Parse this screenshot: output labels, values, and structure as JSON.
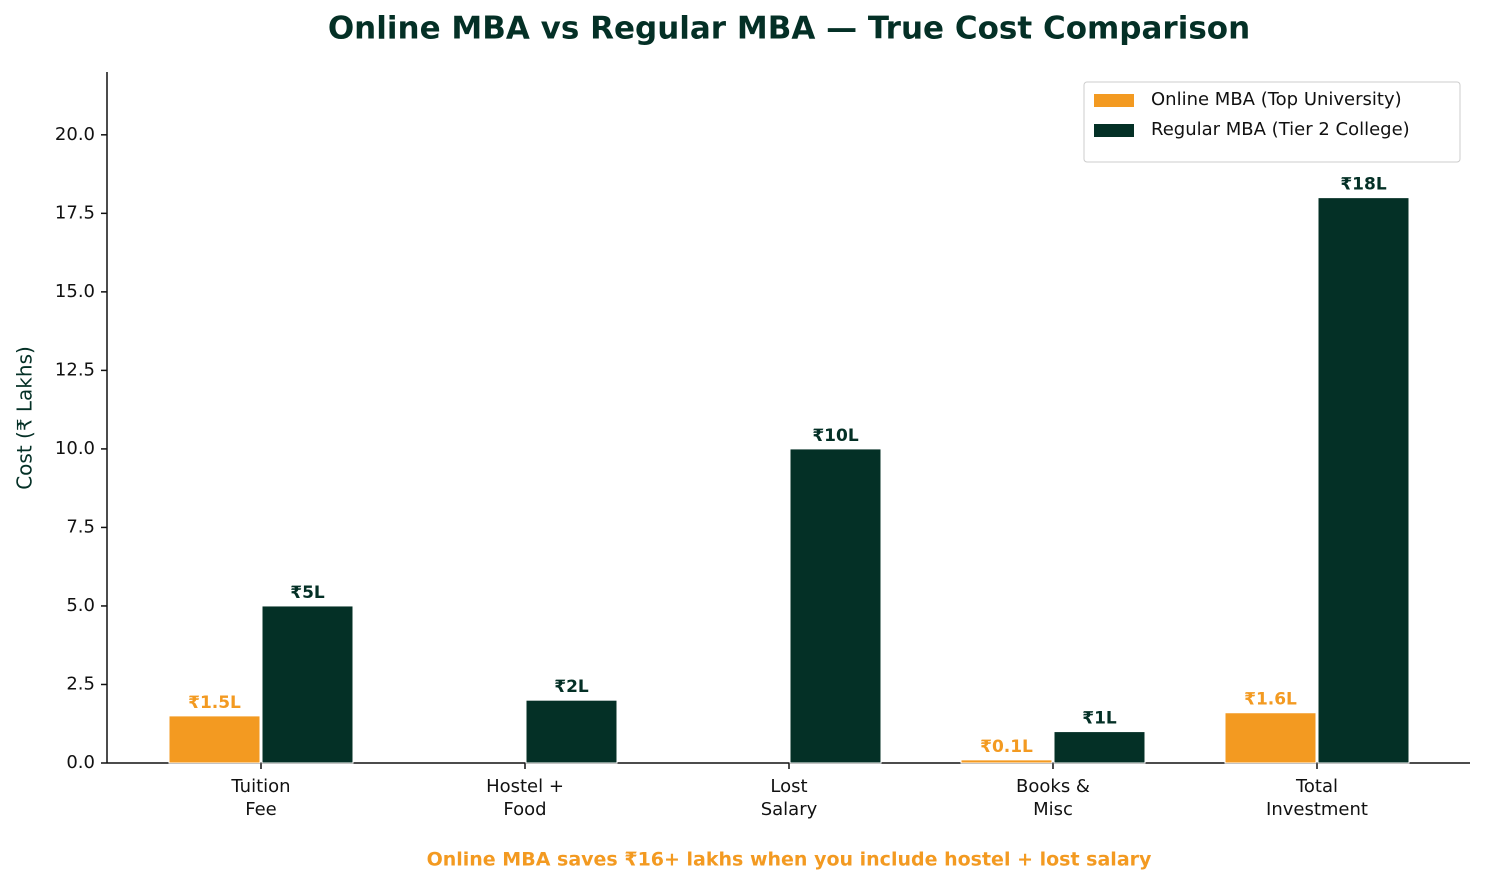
{
  "chart_data": {
    "type": "bar",
    "title": "Online MBA vs Regular MBA — True Cost Comparison",
    "y_label": "Cost (₹ Lakhs)",
    "annotation": "Online MBA saves ₹16+ lakhs when you include hostel + lost salary",
    "categories": [
      [
        "Tuition",
        "Fee"
      ],
      [
        "Hostel +",
        "Food"
      ],
      [
        "Lost",
        "Salary"
      ],
      [
        "Books &",
        "Misc"
      ],
      [
        "Total",
        "Investment"
      ]
    ],
    "series": [
      {
        "name": "Online MBA (Top University)",
        "color": "#f39a21",
        "values": [
          1.5,
          0,
          0,
          0.1,
          1.6
        ],
        "value_labels": [
          "₹1.5L",
          null,
          null,
          "₹0.1L",
          "₹1.6L"
        ]
      },
      {
        "name": "Regular MBA (Tier 2 College)",
        "color": "#043026",
        "values": [
          5,
          2,
          10,
          1,
          18
        ],
        "value_labels": [
          "₹5L",
          "₹2L",
          "₹10L",
          "₹1L",
          "₹18L"
        ]
      }
    ],
    "ylim": [
      0,
      22
    ],
    "yticks": [
      {
        "value": 0,
        "label": "0.0"
      },
      2.5,
      {
        "value": 5,
        "label": "5.0"
      },
      7.5,
      {
        "value": 10,
        "label": "10.0"
      },
      12.5,
      {
        "value": 15,
        "label": "15.0"
      },
      17.5,
      {
        "value": 20,
        "label": "20.0"
      }
    ],
    "legend": "upper right",
    "grid": false
  }
}
